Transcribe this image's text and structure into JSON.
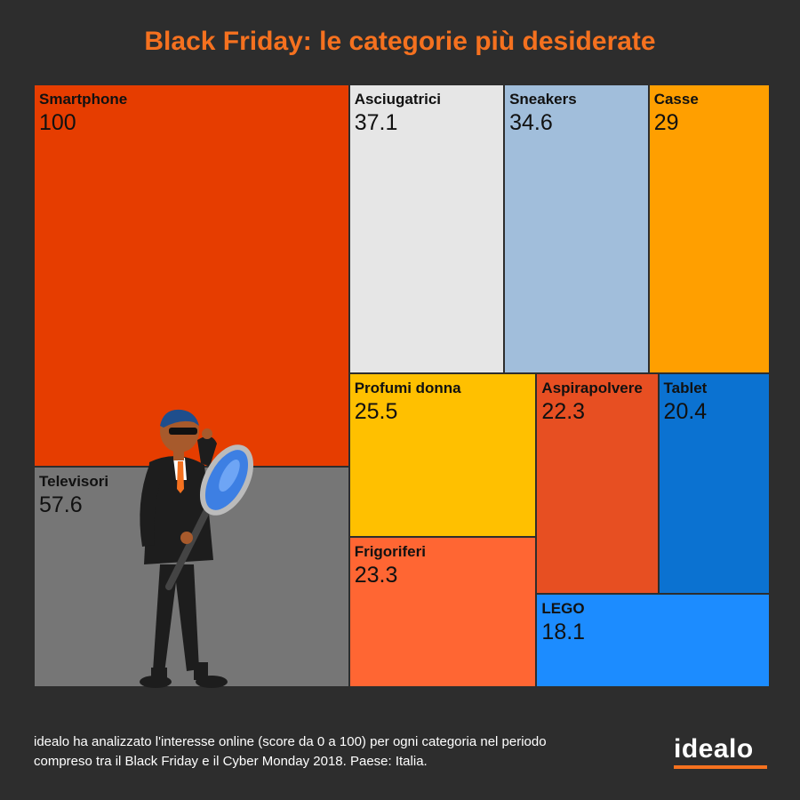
{
  "chart_data": {
    "type": "treemap",
    "title": "Black Friday: le categorie più desiderate",
    "items": [
      {
        "label": "Smartphone",
        "value": 100,
        "color": "#e63d00"
      },
      {
        "label": "Televisori",
        "value": 57.6,
        "color": "#767676"
      },
      {
        "label": "Asciugatrici",
        "value": 37.1,
        "color": "#e6e6e6"
      },
      {
        "label": "Sneakers",
        "value": 34.6,
        "color": "#a1bedb"
      },
      {
        "label": "Casse",
        "value": 29,
        "color": "#ff9f00"
      },
      {
        "label": "Profumi donna",
        "value": 25.5,
        "color": "#ffc000"
      },
      {
        "label": "Frigoriferi",
        "value": 23.3,
        "color": "#ff6633"
      },
      {
        "label": "Aspirapolvere",
        "value": 22.3,
        "color": "#e74f22"
      },
      {
        "label": "Tablet",
        "value": 20.4,
        "color": "#0b72d1"
      },
      {
        "label": "LEGO",
        "value": 18.1,
        "color": "#1c8cff"
      }
    ]
  },
  "footer": {
    "line1": "idealo ha analizzato l'interesse online (score da 0 a 100) per ogni categoria nel periodo",
    "line2": "compreso tra il Black Friday e il Cyber Monday 2018. Paese: Italia."
  },
  "logo": "idealo"
}
